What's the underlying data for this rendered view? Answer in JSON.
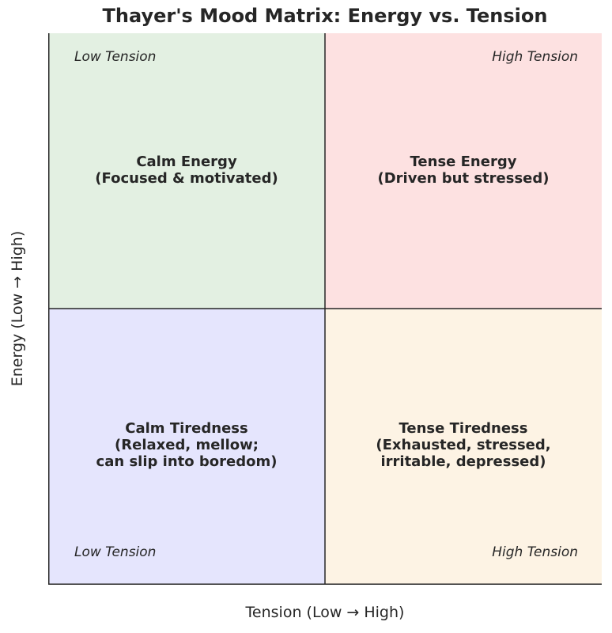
{
  "title": "Thayer's Mood Matrix: Energy vs. Tension",
  "x_axis_label": "Tension (Low → High)",
  "y_axis_label": "Energy (Low → High)",
  "colors": {
    "calm_energy": "#e3f0e2",
    "tense_energy": "#fde1e1",
    "calm_tiredness": "#e5e5fd",
    "tense_tiredness": "#fdf3e4",
    "lines": "#262626"
  },
  "quadrants": {
    "top_left": {
      "label": "Calm Energy\n(Focused & motivated)",
      "corner_label": "Low Tension"
    },
    "top_right": {
      "label": "Tense Energy\n(Driven but stressed)",
      "corner_label": "High Tension"
    },
    "bottom_left": {
      "label": "Calm Tiredness\n(Relaxed, mellow;\ncan slip into boredom)",
      "corner_label": "Low Tension"
    },
    "bottom_right": {
      "label": "Tense Tiredness\n(Exhausted, stressed,\nirritable, depressed)",
      "corner_label": "High Tension"
    }
  }
}
